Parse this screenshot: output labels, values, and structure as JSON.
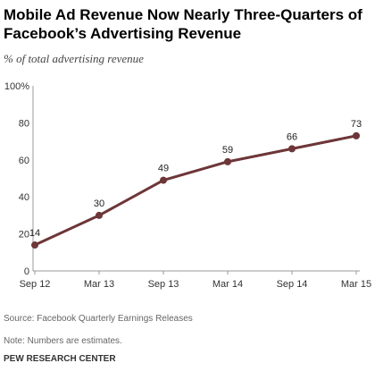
{
  "title": "Mobile Ad Revenue Now Nearly Three-Quarters of Facebook’s Advertising Revenue",
  "subtitle": "% of total advertising revenue",
  "chart_data": {
    "type": "line",
    "x": [
      "Sep 12",
      "Mar 13",
      "Sep 13",
      "Mar 14",
      "Sep 14",
      "Mar 15"
    ],
    "series": [
      {
        "values": [
          14,
          30,
          49,
          59,
          66,
          73
        ],
        "color": "#6d3638"
      }
    ],
    "data_labels": [
      "14",
      "30",
      "49",
      "59",
      "66",
      "73"
    ],
    "y_ticks": [
      "0",
      "20",
      "40",
      "60",
      "80",
      "100%"
    ],
    "y_tick_values": [
      0,
      20,
      40,
      60,
      80,
      100
    ],
    "ylim": [
      0,
      100
    ],
    "xlabel": "",
    "ylabel": "",
    "grid": false,
    "legend": "none"
  },
  "source": "Source: Facebook Quarterly Earnings Releases",
  "note": "Note: Numbers are estimates.",
  "org": "PEW RESEARCH CENTER",
  "colors": {
    "line": "#6d3638",
    "axis": "#999999",
    "text": "#333333"
  }
}
